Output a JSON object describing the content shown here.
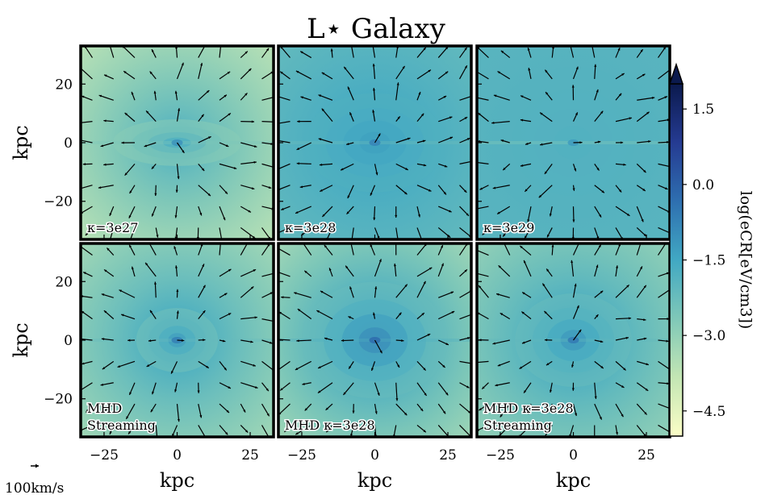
{
  "chart_data": {
    "type": "heatmap",
    "title": "L⋆ Galaxy",
    "layout": "2 rows x 3 columns of 2D maps with velocity arrows",
    "xlabel": "kpc",
    "ylabel": "kpc",
    "xlim": [
      -33,
      33
    ],
    "ylim": [
      -33,
      33
    ],
    "xticks": [
      -25,
      0,
      25
    ],
    "yticks": [
      20,
      0,
      -20
    ],
    "xtick_labels": [
      "−25",
      "0",
      "25"
    ],
    "ytick_labels": [
      "20",
      "0",
      "−20"
    ],
    "colorbar": {
      "label": "log(e_CR[eV/cm^3])",
      "label_text": "log(eCR[eV/cm3])",
      "min": -5.0,
      "max": 2.0,
      "extend": "max",
      "ticks": [
        1.5,
        0.0,
        -1.5,
        -3.0,
        -4.5
      ],
      "tick_labels": [
        "1.5",
        "0.0",
        "−1.5",
        "−3.0",
        "−4.5"
      ],
      "colormap": [
        "#fbfdc6",
        "#c3e6b4",
        "#7fc8b8",
        "#41a8c3",
        "#2e6fb0",
        "#253b92",
        "#0b1a4e"
      ]
    },
    "quiver_key": {
      "label": "100km/s"
    },
    "panels": [
      {
        "label_lines": [
          "κ=3e27"
        ],
        "label_position": "bottom-left",
        "core_value": -1.6,
        "edge_value": -4.3,
        "width": 22,
        "height": 8
      },
      {
        "label_lines": [
          "κ=3e28"
        ],
        "label_position": "bottom-left",
        "core_value": -1.3,
        "edge_value": -2.4,
        "width": 24,
        "height": 17
      },
      {
        "label_lines": [
          "κ=3e29"
        ],
        "label_position": "bottom-left",
        "core_value": -1.8,
        "edge_value": -2.0,
        "width": 30,
        "height": 26
      },
      {
        "label_lines": [
          "MHD",
          "Streaming"
        ],
        "label_position": "bottom-left",
        "core_value": -1.2,
        "edge_value": -3.9,
        "width": 14,
        "height": 11
      },
      {
        "label_lines": [
          "MHD κ=3e28"
        ],
        "label_position": "bottom-left",
        "core_value": -0.8,
        "edge_value": -4.0,
        "width": 25,
        "height": 20
      },
      {
        "label_lines": [
          "MHD κ=3e28",
          "Streaming"
        ],
        "label_position": "bottom-left",
        "core_value": -1.1,
        "edge_value": -3.6,
        "width": 20,
        "height": 16
      }
    ]
  },
  "colors": {
    "frame": "#000000",
    "arrow": "#000000",
    "label_outline": "#ffffff"
  }
}
